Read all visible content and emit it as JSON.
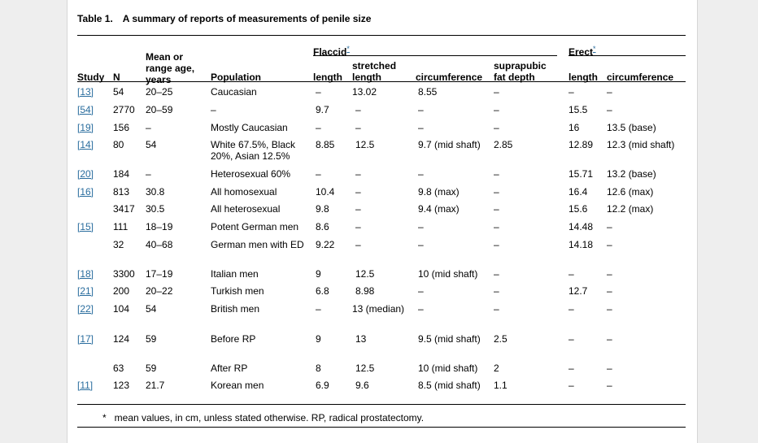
{
  "table": {
    "number": "Table 1.",
    "title": "A summary of reports of measurements of penile size",
    "group_headers": {
      "flaccid": "Flaccid",
      "erect": "Erect",
      "marker": "*"
    },
    "column_headers": [
      "Study",
      "N",
      "Mean or range age, years",
      "Population",
      "length",
      "stretched length",
      "circumference",
      "suprapubic fat depth",
      "length",
      "circumference"
    ],
    "rows": [
      {
        "study": "[13]",
        "n": "54",
        "age": "20–25",
        "population": "Caucasian",
        "fl_length": "–",
        "fl_stretched": "13.02",
        "fl_circ": "8.55",
        "fat": "–",
        "er_length": "–",
        "er_circ": "–"
      },
      {
        "study": "[54]",
        "n": "2770",
        "age": "20–59",
        "population": "–",
        "fl_length": "9.7",
        "fl_stretched": "–",
        "fl_circ": "–",
        "fat": "–",
        "er_length": "15.5",
        "er_circ": "–"
      },
      {
        "study": "[19]",
        "n": "156",
        "age": "–",
        "population": "Mostly Caucasian",
        "fl_length": "–",
        "fl_stretched": "–",
        "fl_circ": "–",
        "fat": "–",
        "er_length": "16",
        "er_circ": "13.5 (base)"
      },
      {
        "study": "[14]",
        "n": "80",
        "age": "54",
        "population": "White 67.5%, Black 20%, Asian 12.5%",
        "fl_length": "8.85",
        "fl_stretched": "12.5",
        "fl_circ": "9.7 (mid shaft)",
        "fat": "2.85",
        "er_length": "12.89",
        "er_circ": "12.3 (mid shaft)"
      },
      {
        "study": "[20]",
        "n": "184",
        "age": "–",
        "population": "Heterosexual 60%",
        "fl_length": "–",
        "fl_stretched": "–",
        "fl_circ": "–",
        "fat": "–",
        "er_length": "15.71",
        "er_circ": "13.2 (base)"
      },
      {
        "study": "[16]",
        "n": "813",
        "age": "30.8",
        "population": "All homosexual",
        "fl_length": "10.4",
        "fl_stretched": "–",
        "fl_circ": "9.8 (max)",
        "fat": "–",
        "er_length": "16.4",
        "er_circ": "12.6 (max)"
      },
      {
        "study": "",
        "n": "3417",
        "age": "30.5",
        "population": "All heterosexual",
        "fl_length": "9.8",
        "fl_stretched": "–",
        "fl_circ": "9.4 (max)",
        "fat": "–",
        "er_length": "15.6",
        "er_circ": "12.2 (max)"
      },
      {
        "study": "[15]",
        "n": "111",
        "age": "18–19",
        "population": "Potent German men",
        "fl_length": "8.6",
        "fl_stretched": "–",
        "fl_circ": "–",
        "fat": "–",
        "er_length": "14.48",
        "er_circ": "–"
      },
      {
        "study": "",
        "n": "32",
        "age": "40–68",
        "population": "German men with ED",
        "fl_length": "9.22",
        "fl_stretched": "–",
        "fl_circ": "–",
        "fat": "–",
        "er_length": "14.18",
        "er_circ": "–"
      },
      {
        "study": "[18]",
        "n": "3300",
        "age": "17–19",
        "population": "Italian men",
        "fl_length": "9",
        "fl_stretched": "12.5",
        "fl_circ": "10 (mid shaft)",
        "fat": "–",
        "er_length": "–",
        "er_circ": "–"
      },
      {
        "study": "[21]",
        "n": "200",
        "age": "20–22",
        "population": "Turkish men",
        "fl_length": "6.8",
        "fl_stretched": "8.98",
        "fl_circ": "–",
        "fat": "–",
        "er_length": "12.7",
        "er_circ": "–"
      },
      {
        "study": "[22]",
        "n": "104",
        "age": "54",
        "population": "British men",
        "fl_length": "–",
        "fl_stretched": "13 (median)",
        "fl_circ": "–",
        "fat": "–",
        "er_length": "–",
        "er_circ": "–"
      },
      {
        "study": "[17]",
        "n": "124",
        "age": "59",
        "population": "Before RP",
        "fl_length": "9",
        "fl_stretched": "13",
        "fl_circ": "9.5 (mid shaft)",
        "fat": "2.5",
        "er_length": "–",
        "er_circ": "–"
      },
      {
        "study": "",
        "n": "63",
        "age": "59",
        "population": "After RP",
        "fl_length": "8",
        "fl_stretched": "12.5",
        "fl_circ": "10 (mid shaft)",
        "fat": "2",
        "er_length": "–",
        "er_circ": "–"
      },
      {
        "study": "[11]",
        "n": "123",
        "age": "21.7",
        "population": "Korean men",
        "fl_length": "6.9",
        "fl_stretched": "9.6",
        "fl_circ": "8.5 (mid shaft)",
        "fat": "1.1",
        "er_length": "–",
        "er_circ": "–"
      }
    ],
    "footnote": {
      "mark": "*",
      "text": "mean values, in cm, unless stated otherwise. RP, radical prostatectomy."
    }
  }
}
